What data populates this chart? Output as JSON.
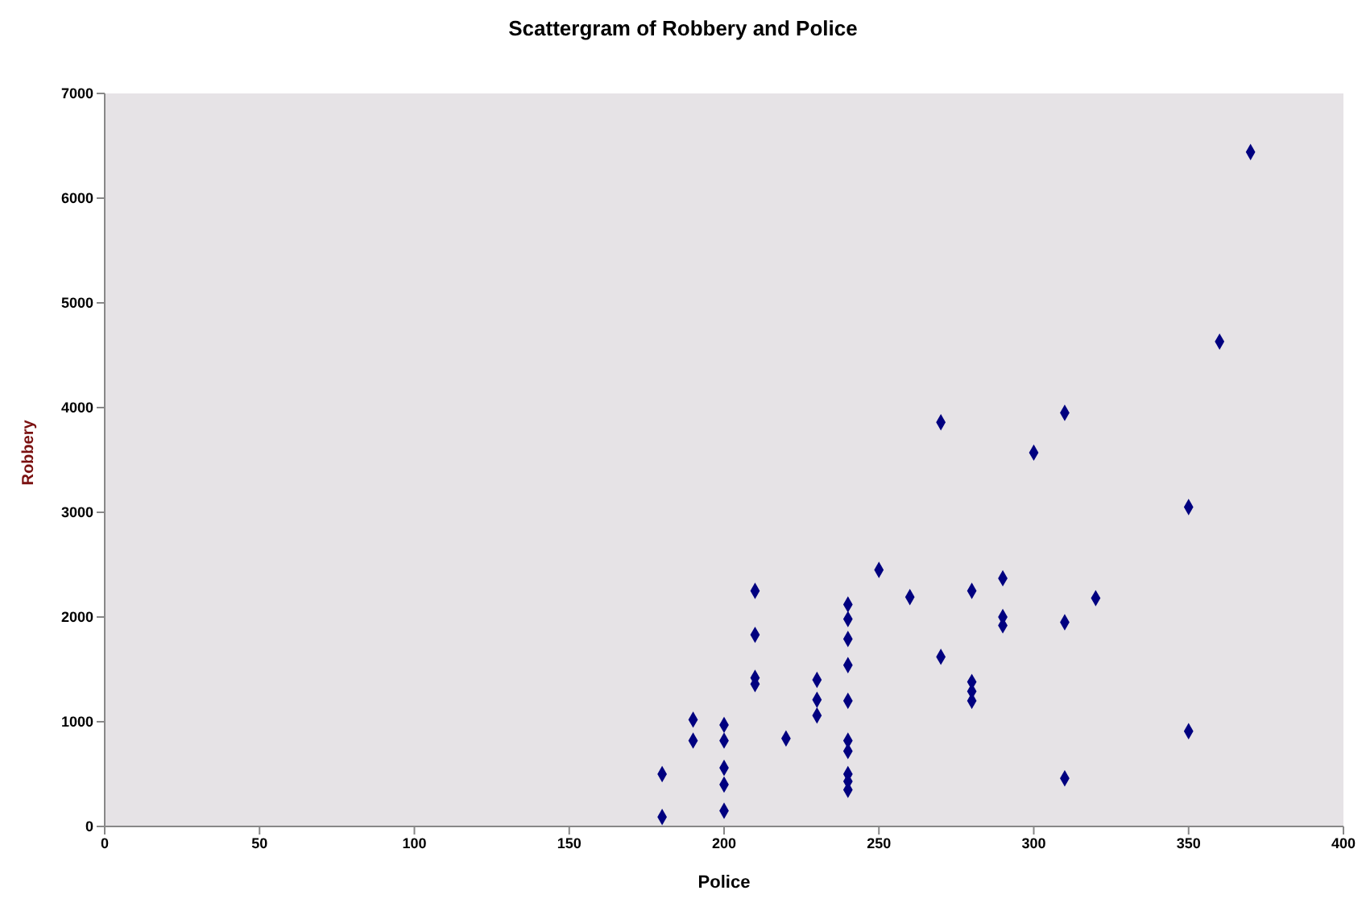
{
  "chart_data": {
    "type": "scatter",
    "title": "Scattergram of Robbery and Police",
    "xlabel": "Police",
    "ylabel": "Robbery",
    "x": [
      180,
      180,
      190,
      190,
      200,
      200,
      200,
      200,
      200,
      210,
      210,
      210,
      210,
      220,
      230,
      230,
      230,
      240,
      240,
      240,
      240,
      240,
      240,
      240,
      240,
      240,
      240,
      250,
      260,
      270,
      270,
      280,
      280,
      280,
      280,
      290,
      290,
      290,
      300,
      310,
      310,
      310,
      320,
      350,
      350,
      360,
      370
    ],
    "series": [
      {
        "color": "#000080",
        "values": [
          500,
          90,
          820,
          1020,
          970,
          820,
          560,
          400,
          150,
          2250,
          1830,
          1420,
          1360,
          840,
          1210,
          1060,
          1400,
          2120,
          1980,
          1790,
          1540,
          1200,
          820,
          720,
          500,
          430,
          350,
          2450,
          2190,
          3860,
          1620,
          2250,
          1380,
          1290,
          1200,
          2370,
          2000,
          1920,
          3570,
          3950,
          1950,
          460,
          2180,
          3050,
          910,
          4630,
          6440
        ]
      }
    ],
    "xlim": [
      0,
      400
    ],
    "xticks": [
      0,
      50,
      100,
      150,
      200,
      250,
      300,
      350,
      400
    ],
    "ylim": [
      0,
      7000
    ],
    "yticks": [
      0,
      1000,
      2000,
      3000,
      4000,
      5000,
      6000,
      7000
    ],
    "marker": "diamond",
    "grid": false
  }
}
